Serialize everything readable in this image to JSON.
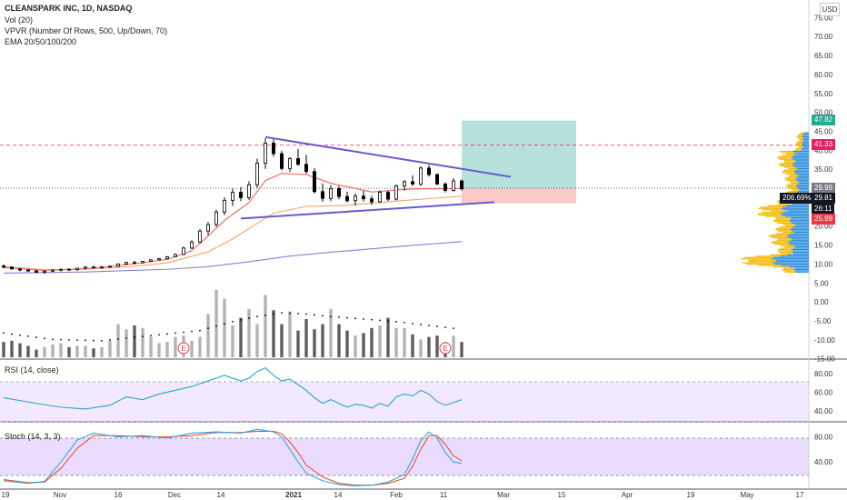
{
  "legend": {
    "title": "CLEANSPARK INC, 1D, NASDAQ",
    "volume": "Vol (20)",
    "vpvr": "VPVR (Number Of Rows, 500, Up/Down, 70)",
    "ema": "EMA 20/50/100/200"
  },
  "currency_button": "USD",
  "rsi_label": "RSI (14, close)",
  "stoch_label": "Stoch (14, 3, 3)",
  "price_tags": {
    "target": "47.82",
    "resistance": "41.33",
    "last": "29.99",
    "percent": "206.69%",
    "current": "29.81",
    "countdown": "26:11",
    "stop": "25.99"
  },
  "colors": {
    "up": "#ffffff",
    "down": "#000000",
    "vol_up": "#b3b3b3",
    "vol_down": "#5d5d5d",
    "ema20": "#f2625e",
    "ema50": "#f5a36a",
    "ema100": "#f4c56b",
    "ema200": "#8c7cd8",
    "triangle": "#6a5acd",
    "rsi": "#26a6c8",
    "stoch_k": "#2ea8e0",
    "stoch_d": "#f0502e",
    "profit_zone": "#b7e2dc",
    "loss_zone": "#f9c9c9",
    "vpvr_up": "#2b8fe0",
    "vpvr_down": "#f5b800"
  },
  "chart_data": {
    "type": "candlestick",
    "price_axis": {
      "ticks": [
        "75.00",
        "70.00",
        "65.00",
        "60.00",
        "55.00",
        "50.00",
        "45.00",
        "40.00",
        "35.00",
        "30.00",
        "25.00",
        "20.00",
        "15.00",
        "10.00",
        "5.00",
        "0.00",
        "-5.00",
        "-10.00",
        "-15.00"
      ]
    },
    "rsi_axis": {
      "ticks": [
        "80.00",
        "60.00",
        "40.00"
      ]
    },
    "stoch_axis": {
      "ticks": [
        "80.00",
        "40.00"
      ]
    },
    "time_axis": {
      "labels": [
        "19",
        "Nov",
        "16",
        "Dec",
        "14",
        "2021",
        "14",
        "Feb",
        "11",
        "Mar",
        "15",
        "Apr",
        "19",
        "May",
        "17"
      ]
    },
    "candles": [
      [
        0,
        9.5,
        9.9,
        8.8,
        9.2
      ],
      [
        2,
        9.2,
        9.4,
        8.5,
        8.7
      ],
      [
        4,
        8.7,
        9.0,
        8.1,
        8.4
      ],
      [
        6,
        8.4,
        8.7,
        7.9,
        8.2
      ],
      [
        8,
        8.2,
        8.4,
        7.6,
        7.8
      ],
      [
        10,
        7.8,
        8.3,
        7.4,
        8.1
      ],
      [
        12,
        8.1,
        8.6,
        7.9,
        8.4
      ],
      [
        14,
        8.4,
        8.8,
        8.1,
        8.6
      ],
      [
        16,
        8.6,
        8.9,
        8.3,
        8.5
      ],
      [
        18,
        8.5,
        9.0,
        8.2,
        8.9
      ],
      [
        20,
        8.9,
        9.4,
        8.6,
        9.2
      ],
      [
        22,
        9.2,
        9.5,
        8.8,
        9.0
      ],
      [
        24,
        9.0,
        9.4,
        8.7,
        9.3
      ],
      [
        26,
        9.3,
        9.6,
        9.0,
        9.4
      ],
      [
        28,
        9.4,
        10.2,
        9.2,
        10.0
      ],
      [
        30,
        10.0,
        10.6,
        9.8,
        10.4
      ],
      [
        32,
        10.4,
        10.8,
        10.0,
        10.3
      ],
      [
        34,
        10.3,
        10.8,
        10.1,
        10.7
      ],
      [
        36,
        10.7,
        11.3,
        10.5,
        11.1
      ],
      [
        38,
        11.1,
        11.6,
        10.9,
        11.4
      ],
      [
        40,
        11.4,
        12.1,
        11.2,
        11.9
      ],
      [
        42,
        11.9,
        12.8,
        11.8,
        12.5
      ],
      [
        44,
        12.5,
        14.6,
        12.3,
        14.2
      ],
      [
        46,
        14.2,
        16.3,
        13.9,
        15.8
      ],
      [
        48,
        15.8,
        19.2,
        15.5,
        18.7
      ],
      [
        50,
        18.7,
        21.0,
        17.6,
        20.4
      ],
      [
        52,
        20.4,
        24.3,
        19.8,
        23.7
      ],
      [
        54,
        23.7,
        27.6,
        22.9,
        26.8
      ],
      [
        56,
        26.8,
        29.9,
        25.3,
        28.9
      ],
      [
        58,
        28.9,
        30.3,
        26.6,
        27.5
      ],
      [
        60,
        27.5,
        31.8,
        26.9,
        30.9
      ],
      [
        62,
        30.9,
        37.8,
        30.1,
        36.6
      ],
      [
        64,
        36.6,
        43.2,
        35.1,
        41.9
      ],
      [
        66,
        41.9,
        42.9,
        38.3,
        39.1
      ],
      [
        68,
        39.1,
        39.9,
        34.7,
        35.2
      ],
      [
        70,
        35.2,
        38.2,
        34.3,
        37.8
      ],
      [
        72,
        37.8,
        40.3,
        35.9,
        36.3
      ],
      [
        74,
        36.3,
        38.8,
        33.8,
        34.4
      ],
      [
        76,
        34.4,
        35.3,
        28.6,
        29.1
      ],
      [
        78,
        29.1,
        31.3,
        26.4,
        27.3
      ],
      [
        80,
        27.3,
        30.8,
        26.6,
        29.9
      ],
      [
        82,
        29.9,
        30.6,
        27.1,
        27.8
      ],
      [
        84,
        27.8,
        29.1,
        26.2,
        26.7
      ],
      [
        86,
        26.7,
        28.6,
        25.4,
        27.9
      ],
      [
        88,
        27.9,
        29.3,
        26.5,
        27.2
      ],
      [
        90,
        27.2,
        28.0,
        25.6,
        26.4
      ],
      [
        92,
        26.4,
        29.4,
        26.1,
        28.9
      ],
      [
        94,
        28.9,
        29.3,
        26.6,
        27.1
      ],
      [
        96,
        27.1,
        31.0,
        26.8,
        30.6
      ],
      [
        98,
        30.6,
        32.1,
        29.4,
        31.7
      ],
      [
        100,
        31.7,
        33.4,
        30.6,
        31.1
      ],
      [
        102,
        31.1,
        35.8,
        30.6,
        35.3
      ],
      [
        104,
        35.3,
        36.1,
        33.1,
        33.6
      ],
      [
        106,
        33.6,
        33.9,
        30.8,
        31.1
      ],
      [
        108,
        31.1,
        31.6,
        28.9,
        29.4
      ],
      [
        110,
        29.4,
        32.6,
        29.1,
        31.9
      ],
      [
        112,
        31.9,
        32.3,
        29.4,
        29.81
      ]
    ],
    "volume": [
      [
        0,
        1.2
      ],
      [
        2,
        1.3
      ],
      [
        4,
        1.1
      ],
      [
        6,
        0.9
      ],
      [
        8,
        0.6
      ],
      [
        10,
        0.8
      ],
      [
        12,
        1.0
      ],
      [
        14,
        1.1
      ],
      [
        16,
        0.8
      ],
      [
        18,
        0.9
      ],
      [
        20,
        0.9
      ],
      [
        22,
        0.7
      ],
      [
        24,
        0.8
      ],
      [
        26,
        1.3
      ],
      [
        28,
        2.6
      ],
      [
        30,
        2.2
      ],
      [
        32,
        2.5
      ],
      [
        34,
        2.3
      ],
      [
        36,
        1.6
      ],
      [
        38,
        1.1
      ],
      [
        40,
        1.2
      ],
      [
        42,
        1.6
      ],
      [
        44,
        1.7
      ],
      [
        46,
        1.3
      ],
      [
        48,
        1.6
      ],
      [
        50,
        3.4
      ],
      [
        52,
        5.3
      ],
      [
        54,
        4.6
      ],
      [
        56,
        2.5
      ],
      [
        58,
        3.1
      ],
      [
        60,
        3.8
      ],
      [
        62,
        2.6
      ],
      [
        64,
        4.9
      ],
      [
        66,
        3.7
      ],
      [
        68,
        2.6
      ],
      [
        70,
        3.6
      ],
      [
        72,
        2.1
      ],
      [
        74,
        3.0
      ],
      [
        76,
        2.2
      ],
      [
        78,
        2.6
      ],
      [
        80,
        3.8
      ],
      [
        82,
        2.6
      ],
      [
        84,
        2.1
      ],
      [
        86,
        1.7
      ],
      [
        88,
        1.9
      ],
      [
        90,
        2.3
      ],
      [
        92,
        2.5
      ],
      [
        94,
        3.1
      ],
      [
        96,
        2.3
      ],
      [
        98,
        2.3
      ],
      [
        100,
        1.8
      ],
      [
        102,
        1.4
      ],
      [
        104,
        1.6
      ],
      [
        106,
        1.7
      ],
      [
        108,
        1.2
      ],
      [
        110,
        1.7
      ],
      [
        112,
        1.2
      ]
    ],
    "ema20": [
      [
        0,
        9.1
      ],
      [
        10,
        8.3
      ],
      [
        20,
        8.8
      ],
      [
        30,
        9.8
      ],
      [
        40,
        11.2
      ],
      [
        46,
        13.5
      ],
      [
        50,
        17.4
      ],
      [
        54,
        21.5
      ],
      [
        60,
        26.2
      ],
      [
        64,
        32.0
      ],
      [
        68,
        33.9
      ],
      [
        74,
        33.6
      ],
      [
        80,
        31.3
      ],
      [
        90,
        29.0
      ],
      [
        100,
        29.8
      ],
      [
        112,
        29.9
      ]
    ],
    "ema50": [
      [
        0,
        9.3
      ],
      [
        10,
        8.5
      ],
      [
        20,
        8.6
      ],
      [
        30,
        9.2
      ],
      [
        40,
        10.3
      ],
      [
        50,
        13.2
      ],
      [
        56,
        16.6
      ],
      [
        62,
        20.7
      ],
      [
        66,
        23.4
      ],
      [
        74,
        25.2
      ],
      [
        84,
        25.5
      ],
      [
        96,
        26.6
      ],
      [
        112,
        27.9
      ]
    ],
    "ema200": [
      [
        0,
        7.6
      ],
      [
        20,
        7.9
      ],
      [
        40,
        8.6
      ],
      [
        50,
        9.3
      ],
      [
        60,
        10.6
      ],
      [
        70,
        12.1
      ],
      [
        80,
        13.1
      ],
      [
        90,
        14.0
      ],
      [
        100,
        14.9
      ],
      [
        112,
        15.9
      ]
    ],
    "triangle_upper": [
      [
        64,
        43.5
      ],
      [
        124,
        33.0
      ]
    ],
    "triangle_lower": [
      [
        58,
        22.0
      ],
      [
        120,
        26.3
      ]
    ],
    "position": {
      "entry": 29.99,
      "target": 47.82,
      "stop": 25.99,
      "x_start": 112,
      "x_end": 140
    },
    "resistance_line": 41.33,
    "vol_ma": [
      [
        0,
        1.9
      ],
      [
        12,
        1.4
      ],
      [
        24,
        1.3
      ],
      [
        36,
        1.7
      ],
      [
        48,
        2.1
      ],
      [
        56,
        2.8
      ],
      [
        62,
        3.2
      ],
      [
        68,
        3.5
      ],
      [
        74,
        3.4
      ],
      [
        80,
        3.2
      ],
      [
        88,
        3.0
      ],
      [
        96,
        2.8
      ],
      [
        104,
        2.5
      ],
      [
        112,
        2.2
      ]
    ],
    "rsi": [
      [
        0,
        54
      ],
      [
        8,
        48
      ],
      [
        14,
        44
      ],
      [
        20,
        42
      ],
      [
        26,
        46
      ],
      [
        30,
        55
      ],
      [
        34,
        52
      ],
      [
        38,
        58
      ],
      [
        42,
        62
      ],
      [
        46,
        66
      ],
      [
        50,
        72
      ],
      [
        54,
        78
      ],
      [
        58,
        72
      ],
      [
        60,
        75
      ],
      [
        62,
        82
      ],
      [
        64,
        86
      ],
      [
        66,
        78
      ],
      [
        68,
        72
      ],
      [
        70,
        74
      ],
      [
        72,
        68
      ],
      [
        74,
        62
      ],
      [
        76,
        54
      ],
      [
        78,
        48
      ],
      [
        80,
        52
      ],
      [
        82,
        48
      ],
      [
        84,
        44
      ],
      [
        86,
        47
      ],
      [
        88,
        46
      ],
      [
        90,
        43
      ],
      [
        92,
        48
      ],
      [
        94,
        45
      ],
      [
        96,
        55
      ],
      [
        98,
        58
      ],
      [
        100,
        56
      ],
      [
        102,
        62
      ],
      [
        104,
        58
      ],
      [
        106,
        50
      ],
      [
        108,
        46
      ],
      [
        110,
        49
      ],
      [
        112,
        52
      ]
    ],
    "stoch_k": [
      [
        0,
        10
      ],
      [
        6,
        6
      ],
      [
        10,
        9
      ],
      [
        14,
        40
      ],
      [
        18,
        75
      ],
      [
        22,
        86
      ],
      [
        28,
        80
      ],
      [
        34,
        82
      ],
      [
        40,
        78
      ],
      [
        46,
        86
      ],
      [
        52,
        88
      ],
      [
        58,
        86
      ],
      [
        62,
        92
      ],
      [
        66,
        88
      ],
      [
        68,
        80
      ],
      [
        70,
        60
      ],
      [
        72,
        40
      ],
      [
        74,
        22
      ],
      [
        78,
        10
      ],
      [
        82,
        4
      ],
      [
        86,
        2
      ],
      [
        90,
        3
      ],
      [
        94,
        8
      ],
      [
        98,
        20
      ],
      [
        100,
        45
      ],
      [
        102,
        74
      ],
      [
        104,
        88
      ],
      [
        106,
        78
      ],
      [
        108,
        55
      ],
      [
        110,
        40
      ],
      [
        112,
        38
      ]
    ],
    "stoch_d": [
      [
        0,
        12
      ],
      [
        6,
        7
      ],
      [
        10,
        8
      ],
      [
        14,
        30
      ],
      [
        18,
        62
      ],
      [
        22,
        82
      ],
      [
        28,
        82
      ],
      [
        34,
        80
      ],
      [
        40,
        80
      ],
      [
        46,
        82
      ],
      [
        52,
        87
      ],
      [
        58,
        87
      ],
      [
        62,
        89
      ],
      [
        66,
        89
      ],
      [
        68,
        85
      ],
      [
        70,
        72
      ],
      [
        72,
        55
      ],
      [
        74,
        35
      ],
      [
        78,
        16
      ],
      [
        82,
        6
      ],
      [
        86,
        3
      ],
      [
        90,
        3
      ],
      [
        94,
        6
      ],
      [
        98,
        14
      ],
      [
        100,
        33
      ],
      [
        102,
        60
      ],
      [
        104,
        82
      ],
      [
        106,
        82
      ],
      [
        108,
        68
      ],
      [
        110,
        50
      ],
      [
        112,
        42
      ]
    ],
    "events": [
      {
        "x": 44,
        "label": "E"
      },
      {
        "x": 108,
        "label": "E"
      }
    ]
  }
}
